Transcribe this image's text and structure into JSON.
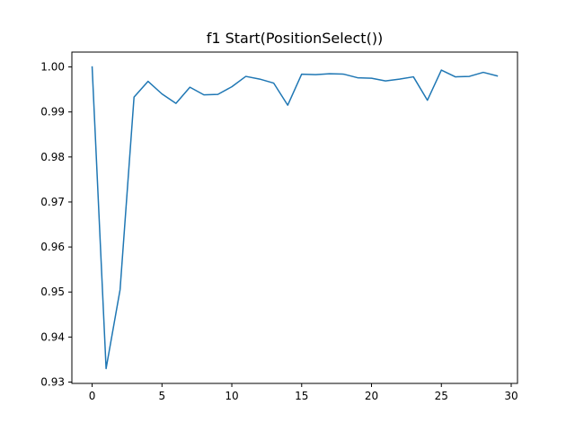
{
  "chart_data": {
    "type": "line",
    "title": "f1 Start(PositionSelect())",
    "xlabel": "",
    "ylabel": "",
    "xlim": [
      -1.45,
      30.45
    ],
    "ylim": [
      0.9297,
      1.0033
    ],
    "grid": false,
    "legend": "none",
    "x_ticks": [
      0,
      5,
      10,
      15,
      20,
      25,
      30
    ],
    "x_tick_labels": [
      "0",
      "5",
      "10",
      "15",
      "20",
      "25",
      "30"
    ],
    "y_ticks": [
      0.93,
      0.94,
      0.95,
      0.96,
      0.97,
      0.98,
      0.99,
      1.0
    ],
    "y_tick_labels": [
      "0.93",
      "0.94",
      "0.95",
      "0.96",
      "0.97",
      "0.98",
      "0.99",
      "1.00"
    ],
    "series": [
      {
        "color": "#1f77b4",
        "x": [
          0,
          1,
          2,
          3,
          4,
          5,
          6,
          7,
          8,
          9,
          10,
          11,
          12,
          13,
          14,
          15,
          16,
          17,
          18,
          19,
          20,
          21,
          22,
          23,
          24,
          25,
          26,
          27,
          28,
          29
        ],
        "values": [
          1.0,
          0.933,
          0.9505,
          0.9933,
          0.9968,
          0.994,
          0.9919,
          0.9955,
          0.9938,
          0.9939,
          0.9956,
          0.9979,
          0.9973,
          0.9964,
          0.9915,
          0.9984,
          0.9983,
          0.9985,
          0.9984,
          0.9976,
          0.9975,
          0.9969,
          0.9973,
          0.9978,
          0.9926,
          0.9993,
          0.9978,
          0.9979,
          0.9988,
          0.998
        ]
      }
    ]
  }
}
